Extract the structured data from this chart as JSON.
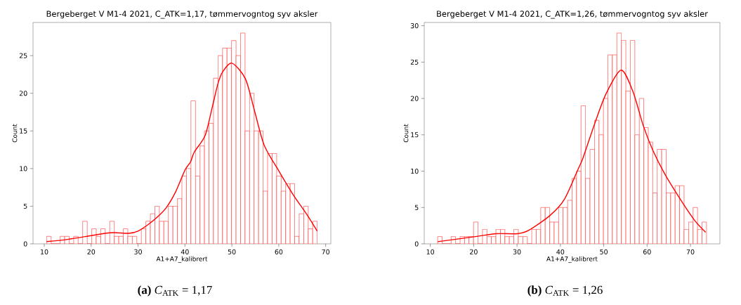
{
  "chart_data": [
    {
      "type": "histogram",
      "title": "Bergeberget V M1-4 2021, C_ATK=1,17, tømmervogntog syv aksler",
      "xlabel": "A1+A7_kalibrert",
      "ylabel": "Count",
      "xlim": [
        7.6,
        71.1
      ],
      "ylim": [
        0,
        29.4
      ],
      "xticks": [
        10,
        20,
        30,
        40,
        50,
        60,
        70
      ],
      "yticks": [
        0,
        5,
        10,
        15,
        20,
        25
      ],
      "annotations": [
        "**(a)** *C*$_{ATK}$ = 1,17"
      ],
      "series": [
        {
          "type": "histogram",
          "color": "#ff3333",
          "bins": [
            10.5,
            11.46,
            12.42,
            13.39,
            14.35,
            15.31,
            16.27,
            17.23,
            18.19,
            19.16,
            20.12,
            21.08,
            22.04,
            23.0,
            23.96,
            24.93,
            25.89,
            26.85,
            27.81,
            28.77,
            29.73,
            30.7,
            31.66,
            32.62,
            33.58,
            34.54,
            35.5,
            36.47,
            37.43,
            38.39,
            39.35,
            40.31,
            41.27,
            42.24,
            43.2,
            44.16,
            45.12,
            46.08,
            47.04,
            48.01,
            48.97,
            49.93,
            50.89,
            51.85,
            52.81,
            53.78,
            54.74,
            55.7,
            56.66,
            57.62,
            58.58,
            59.55,
            60.51,
            61.47,
            62.43,
            63.39,
            64.35,
            65.32,
            66.28,
            67.24,
            68.2
          ],
          "values": [
            1,
            0,
            0,
            1,
            1,
            0,
            1,
            0,
            3,
            0,
            2,
            1,
            2,
            0,
            3,
            1,
            1,
            2,
            1,
            1,
            0,
            2,
            3,
            4,
            5,
            3,
            3,
            5,
            5,
            6,
            9,
            10,
            19,
            9,
            13,
            15,
            16,
            22,
            25,
            26,
            26,
            27,
            25,
            28,
            15,
            20,
            15,
            15,
            7,
            12,
            12,
            9,
            7,
            8,
            8,
            1,
            4,
            5,
            2,
            3
          ]
        },
        {
          "type": "line",
          "color": "#ff0000",
          "x": [
            10.5,
            15,
            20,
            23,
            25,
            28,
            30,
            32,
            34,
            36,
            38,
            40,
            41.2,
            42,
            44.3,
            45.8,
            47,
            48,
            50,
            52.9,
            54.9,
            56.9,
            60,
            63,
            66.1,
            68.2
          ],
          "values": [
            0.3,
            0.6,
            1.1,
            1.4,
            1.5,
            1.4,
            1.7,
            2.5,
            3.5,
            4.8,
            6.9,
            9.8,
            10.9,
            12.2,
            14.4,
            18.1,
            21.2,
            22.8,
            24,
            21.9,
            17.5,
            13.1,
            9.7,
            6.6,
            3.8,
            1.7
          ]
        }
      ]
    },
    {
      "type": "histogram",
      "title": "Bergeberget V M1-4 2021, C_ATK=1,26, tømmervogntog syv aksler",
      "xlabel": "A1+A7_kalibrert",
      "ylabel": "Count",
      "xlim": [
        8.6,
        76.8
      ],
      "ylim": [
        0,
        30.45
      ],
      "xticks": [
        10,
        20,
        30,
        40,
        50,
        60,
        70
      ],
      "yticks": [
        0,
        5,
        10,
        15,
        20,
        25,
        30
      ],
      "annotations": [
        "**(b)** *C*$_{ATK}$ = 1,26"
      ],
      "series": [
        {
          "type": "histogram",
          "color": "#ff3333",
          "bins": [
            11.7,
            12.73,
            13.77,
            14.8,
            15.83,
            16.87,
            17.9,
            18.93,
            19.97,
            21.0,
            22.03,
            23.07,
            24.1,
            25.13,
            26.17,
            27.2,
            28.23,
            29.27,
            30.3,
            31.33,
            32.37,
            33.4,
            34.43,
            35.47,
            36.5,
            37.53,
            38.57,
            39.6,
            40.63,
            41.67,
            42.7,
            43.73,
            44.77,
            45.8,
            46.83,
            47.87,
            48.9,
            49.93,
            50.97,
            52.0,
            53.03,
            54.07,
            55.1,
            56.13,
            57.17,
            58.2,
            59.23,
            60.27,
            61.3,
            62.33,
            63.37,
            64.4,
            65.43,
            66.47,
            67.5,
            68.53,
            69.57,
            70.6,
            71.63,
            72.67,
            73.7
          ],
          "values": [
            1,
            0,
            0,
            1,
            0,
            1,
            1,
            1,
            3,
            0,
            2,
            1,
            1,
            2,
            2,
            1,
            1,
            2,
            1,
            1,
            0,
            2,
            2,
            5,
            5,
            3,
            3,
            5,
            5,
            6,
            9,
            10,
            19,
            9,
            13,
            17,
            15,
            20,
            26,
            26,
            29,
            28,
            21,
            28,
            15,
            20,
            16,
            14,
            7,
            13,
            13,
            7,
            7,
            8,
            8,
            2,
            3,
            5,
            2,
            3
          ]
        },
        {
          "type": "line",
          "color": "#ff0000",
          "x": [
            11.7,
            20.4,
            25.3,
            30.1,
            32.8,
            37.6,
            40.9,
            44.1,
            45.2,
            47.9,
            50.5,
            54.0,
            56.7,
            59.1,
            61.3,
            64.0,
            67.7,
            71.0,
            73.5
          ],
          "values": [
            0.3,
            1.0,
            1.4,
            1.4,
            1.9,
            3.9,
            6.1,
            10.3,
            11.8,
            16.5,
            20.6,
            23.9,
            21,
            16.3,
            12.9,
            9.7,
            6.1,
            3.2,
            1.6
          ]
        }
      ]
    }
  ]
}
